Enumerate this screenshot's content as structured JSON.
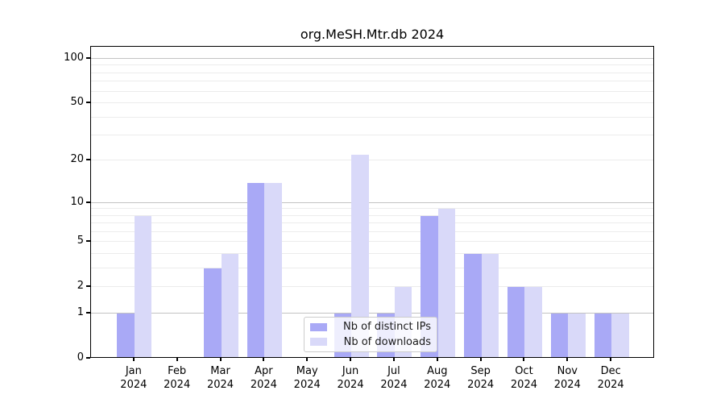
{
  "title": "org.MeSH.Mtr.db 2024",
  "chart_data": {
    "type": "bar",
    "title": "org.MeSH.Mtr.db 2024",
    "categories": [
      "Jan 2024",
      "Feb 2024",
      "Mar 2024",
      "Apr 2024",
      "May 2024",
      "Jun 2024",
      "Jul 2024",
      "Aug 2024",
      "Sep 2024",
      "Oct 2024",
      "Nov 2024",
      "Dec 2024"
    ],
    "series": [
      {
        "name": "Nb of distinct IPs",
        "color": "#a9a9f6",
        "values": [
          1,
          0,
          3,
          14,
          0,
          1,
          1,
          8,
          4,
          2,
          1,
          1
        ]
      },
      {
        "name": "Nb of downloads",
        "color": "#d9d9f9",
        "values": [
          8,
          0,
          4,
          14,
          0,
          22,
          2,
          9,
          4,
          2,
          1,
          1
        ]
      }
    ],
    "xlabel": "",
    "ylabel": "",
    "yscale": "log1p",
    "ylim": [
      0,
      121
    ],
    "yticks": [
      100,
      50,
      20,
      10,
      5,
      2,
      1,
      0
    ],
    "major_gridlines": [
      1,
      10,
      100
    ],
    "minor_gridlines": [
      2,
      3,
      4,
      5,
      6,
      7,
      8,
      9,
      20,
      30,
      40,
      50,
      60,
      70,
      80,
      90
    ],
    "grid": true,
    "legend_position": "lower center"
  },
  "colors": {
    "background": "#ffffff",
    "axis": "#000000",
    "major_grid": "#c3c3c3",
    "minor_grid": "#ececec",
    "ips_bar": "#a9a9f6",
    "downloads_bar": "#d9d9f9",
    "legend_border": "#cccccc"
  }
}
